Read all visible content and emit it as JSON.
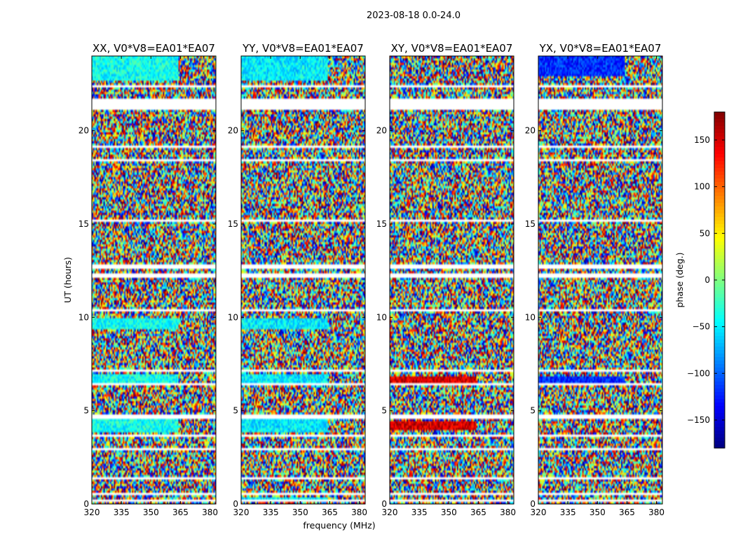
{
  "chart_data": {
    "type": "heatmap",
    "title": "2023-08-18 0.0-24.0",
    "xlabel": "frequency (MHz)",
    "ylabel": "UT (hours)",
    "xlim": [
      320,
      383
    ],
    "ylim": [
      0,
      24
    ],
    "x_ticks": [
      320,
      335,
      350,
      365,
      380
    ],
    "y_ticks": [
      0,
      5,
      10,
      15,
      20
    ],
    "colorbar": {
      "label": "phase (deg.)",
      "range": [
        -180,
        180
      ],
      "ticks": [
        150,
        100,
        50,
        0,
        -50,
        -100,
        -150
      ],
      "colormap": "jet"
    },
    "panels": [
      {
        "title": "XX, V0*V8=EA01*EA07",
        "dominant_phase": -40
      },
      {
        "title": "YY, V0*V8=EA01*EA07",
        "dominant_phase": -50
      },
      {
        "title": "XY, V0*V8=EA01*EA07",
        "dominant_phase": null
      },
      {
        "title": "YX, V0*V8=EA01*EA07",
        "dominant_phase": null
      }
    ],
    "flagged_ut_ranges": [
      [
        22.35,
        22.45
      ],
      [
        21.1,
        21.75
      ],
      [
        19.05,
        19.15
      ],
      [
        18.35,
        18.45
      ],
      [
        15.1,
        15.2
      ],
      [
        14.85,
        14.9
      ],
      [
        12.65,
        12.8
      ],
      [
        12.15,
        12.3
      ],
      [
        10.35,
        10.45
      ],
      [
        8.35,
        8.45
      ],
      [
        7.1,
        7.2
      ],
      [
        6.3,
        6.45
      ],
      [
        5.0,
        5.1
      ],
      [
        4.55,
        4.8
      ],
      [
        3.65,
        3.75
      ],
      [
        2.85,
        2.95
      ],
      [
        1.35,
        1.45
      ],
      [
        0.45,
        0.55
      ],
      [
        0.15,
        0.25
      ]
    ],
    "coherent_ut_bands": {
      "XX": [
        [
          22.7,
          24.0
        ],
        [
          9.4,
          10.0
        ],
        [
          6.5,
          7.0
        ],
        [
          3.8,
          4.5
        ],
        [
          0.45,
          0.5
        ]
      ],
      "YY": [
        [
          22.7,
          24.0
        ],
        [
          9.4,
          10.0
        ],
        [
          6.5,
          7.0
        ],
        [
          3.8,
          4.5
        ],
        [
          0.1,
          0.3
        ]
      ],
      "XY": [
        [
          6.45,
          6.8
        ],
        [
          3.9,
          4.4
        ]
      ],
      "YX": [
        [
          22.9,
          24.0
        ],
        [
          6.5,
          6.8
        ]
      ]
    },
    "grid": false
  }
}
